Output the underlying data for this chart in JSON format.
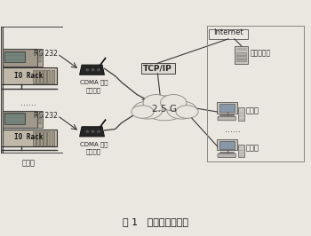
{
  "title": "图 1   系统通信结构图",
  "bg_color": "#eae7e0",
  "elements": {
    "rs232_top": "RS 232",
    "rs232_bottom": "RS 232",
    "cdma_top": "CDMA 数据\n传输终端",
    "cdma_bottom": "CDMA 数据\n传输终端",
    "cloud_label": "2.5 G",
    "tcp_label": "TCP/IP",
    "internet_label": "Internet",
    "server_label": "通信服务器",
    "upper_pc_label": "上位机",
    "dots_left": "……",
    "dots_right": "……",
    "lower_pc_label": "上位机",
    "lower_station": "下位机",
    "right_bottom_pc": "上位机"
  },
  "line_color": "#3a3a3a",
  "box_edge": "#555555",
  "rack_face": "#c0b8a8",
  "ctrl_face": "#a0988a",
  "cdma_face": "#252525",
  "cloud_face": "#e8e4de",
  "cloud_edge": "#888880",
  "server_face": "#c8c4bc",
  "pc_face": "#c8c4bc",
  "screen_face": "#8898a8",
  "tcp_face": "#dddad2",
  "dark": "#222222"
}
